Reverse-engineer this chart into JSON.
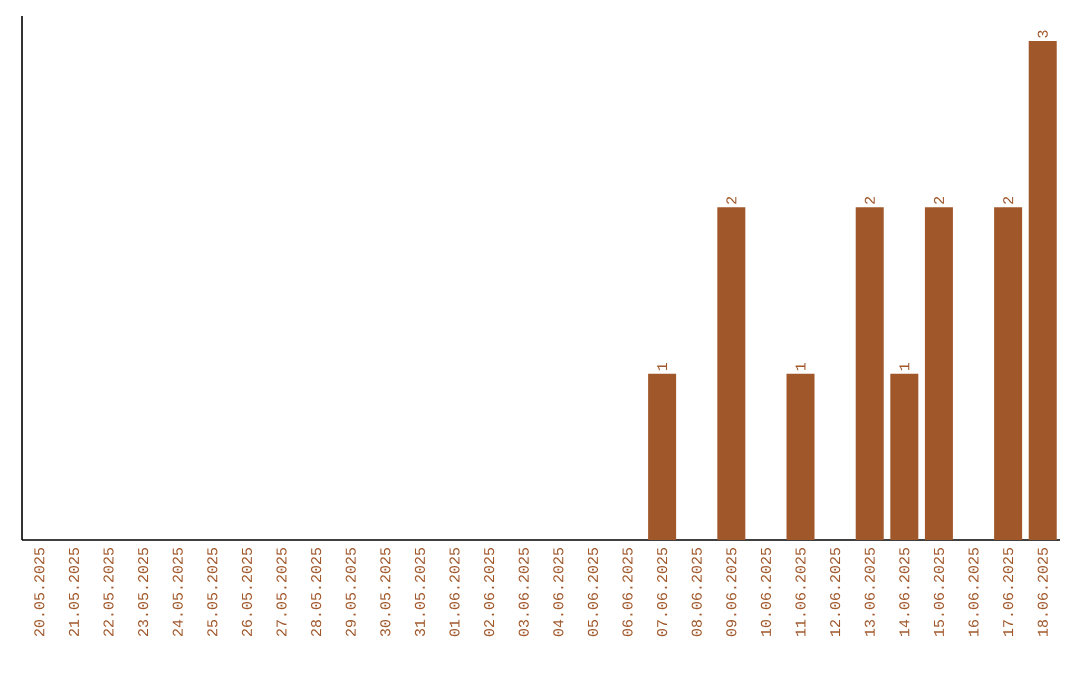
{
  "chart_data": {
    "type": "bar",
    "categories": [
      "20.05.2025",
      "21.05.2025",
      "22.05.2025",
      "23.05.2025",
      "24.05.2025",
      "25.05.2025",
      "26.05.2025",
      "27.05.2025",
      "28.05.2025",
      "29.05.2025",
      "30.05.2025",
      "31.05.2025",
      "01.06.2025",
      "02.06.2025",
      "03.06.2025",
      "04.06.2025",
      "05.06.2025",
      "06.06.2025",
      "07.06.2025",
      "08.06.2025",
      "09.06.2025",
      "10.06.2025",
      "11.06.2025",
      "12.06.2025",
      "13.06.2025",
      "14.06.2025",
      "15.06.2025",
      "16.06.2025",
      "17.06.2025",
      "18.06.2025"
    ],
    "values": [
      null,
      null,
      null,
      null,
      null,
      null,
      null,
      null,
      null,
      null,
      null,
      null,
      null,
      null,
      null,
      null,
      null,
      null,
      1,
      null,
      2,
      null,
      1,
      null,
      2,
      1,
      2,
      null,
      2,
      3
    ],
    "value_labels": [
      null,
      null,
      null,
      null,
      null,
      null,
      null,
      null,
      null,
      null,
      null,
      null,
      null,
      null,
      null,
      null,
      null,
      null,
      "1",
      null,
      "2",
      null,
      "1",
      null,
      "2",
      "1",
      "2",
      null,
      "2",
      "3"
    ],
    "color": "#a0572a",
    "grid": false
  }
}
